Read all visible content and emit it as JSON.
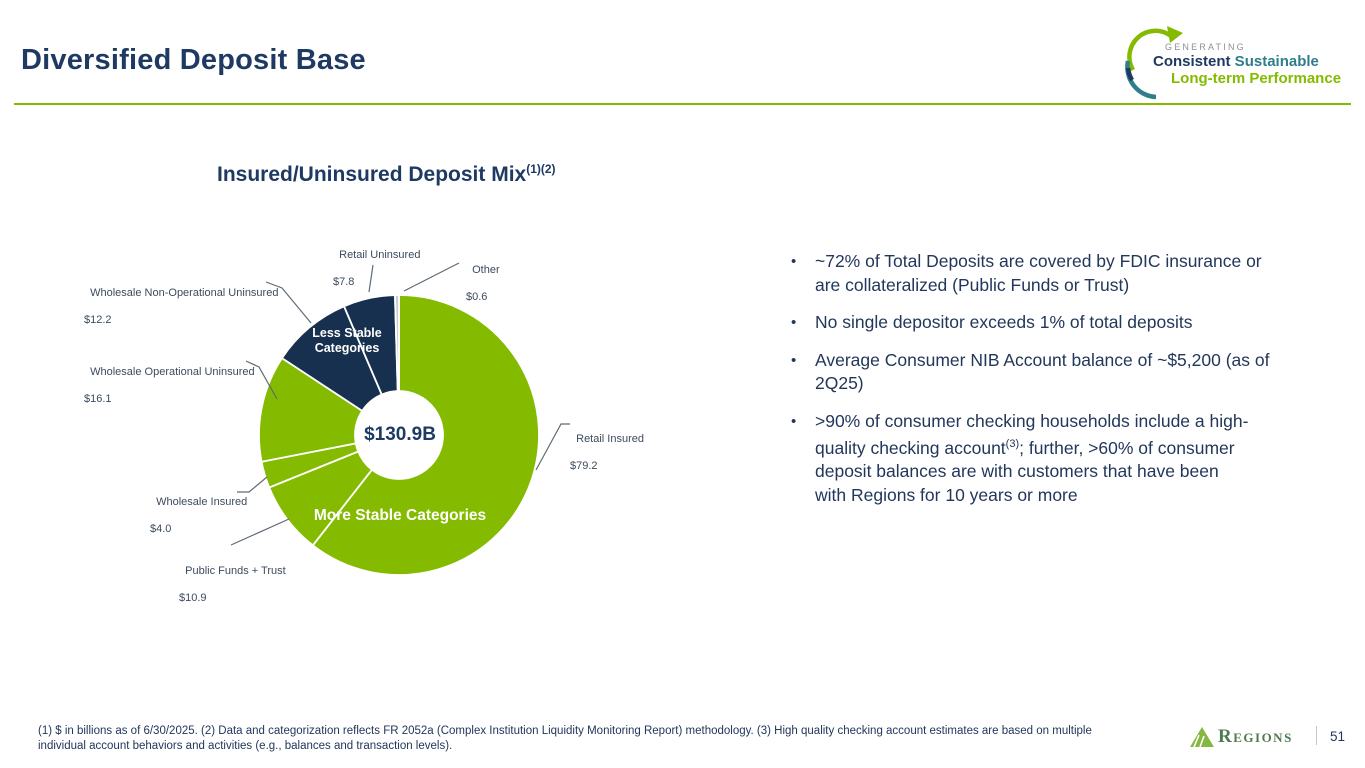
{
  "slide": {
    "title": "Diversified Deposit Base",
    "page_number": "51"
  },
  "brand": {
    "tagline_top": "GENERATING",
    "tagline_word1": "Consistent",
    "tagline_word2": " Sustainable",
    "tagline_line2": "Long-term Performance",
    "footer_wordmark": "Regions",
    "colors": {
      "green": "#84BB00",
      "navy": "#17304F",
      "teal": "#2E7E8C",
      "other_gray": "#C9CDD2"
    }
  },
  "chart": {
    "title": "Insured/Uninsured Deposit Mix",
    "title_superscript": "(1)(2)",
    "center_total": "$130.9B",
    "group_label_less": "Less Stable\nCategories",
    "group_label_more": "More Stable Categories"
  },
  "chart_data": {
    "type": "pie",
    "subtype": "donut",
    "title": "Insured/Uninsured Deposit Mix(1)(2)",
    "units": "$ in billions as of 6/30/2025",
    "total_value": 130.9,
    "total_label": "$130.9B",
    "legend_position": "callout-labels",
    "segments": [
      {
        "label": "Retail Insured",
        "value": 79.2,
        "display_value": "$79.2",
        "color": "#84BB00",
        "group": "More Stable Categories"
      },
      {
        "label": "Public Funds + Trust",
        "value": 10.9,
        "display_value": "$10.9",
        "color": "#84BB00",
        "group": "More Stable Categories"
      },
      {
        "label": "Wholesale Insured",
        "value": 4.0,
        "display_value": "$4.0",
        "color": "#84BB00",
        "group": "More Stable Categories"
      },
      {
        "label": "Wholesale Operational Uninsured",
        "value": 16.1,
        "display_value": "$16.1",
        "color": "#84BB00",
        "group": "More Stable Categories"
      },
      {
        "label": "Wholesale Non-Operational Uninsured",
        "value": 12.2,
        "display_value": "$12.2",
        "color": "#17304F",
        "group": "Less Stable Categories"
      },
      {
        "label": "Retail Uninsured",
        "value": 7.8,
        "display_value": "$7.8",
        "color": "#17304F",
        "group": "Less Stable Categories"
      },
      {
        "label": "Other",
        "value": 0.6,
        "display_value": "$0.6",
        "color": "#C9CDD2",
        "group": "Other"
      }
    ]
  },
  "bullets": [
    {
      "text": "~72% of Total Deposits are covered by FDIC insurance or\nare collateralized (Public Funds or Trust)"
    },
    {
      "text": "No single depositor exceeds 1% of total deposits"
    },
    {
      "text": "Average Consumer NIB Account balance of ~$5,200 (as of\n2Q25)"
    },
    {
      "text": ">90% of consumer checking households include a high-\nquality checking account",
      "sup": "(3)",
      "text_after": "; further, >60% of consumer\ndeposit balances are with customers that have been\nwith Regions for 10 years or more"
    }
  ],
  "footnote": {
    "text": "(1) $ in billions as of 6/30/2025. (2) Data and categorization reflects FR 2052a (Complex Institution Liquidity Monitoring Report) methodology. (3) High quality checking account estimates are based on multiple\nindividual account behaviors and activities (e.g., balances and transaction levels)."
  }
}
